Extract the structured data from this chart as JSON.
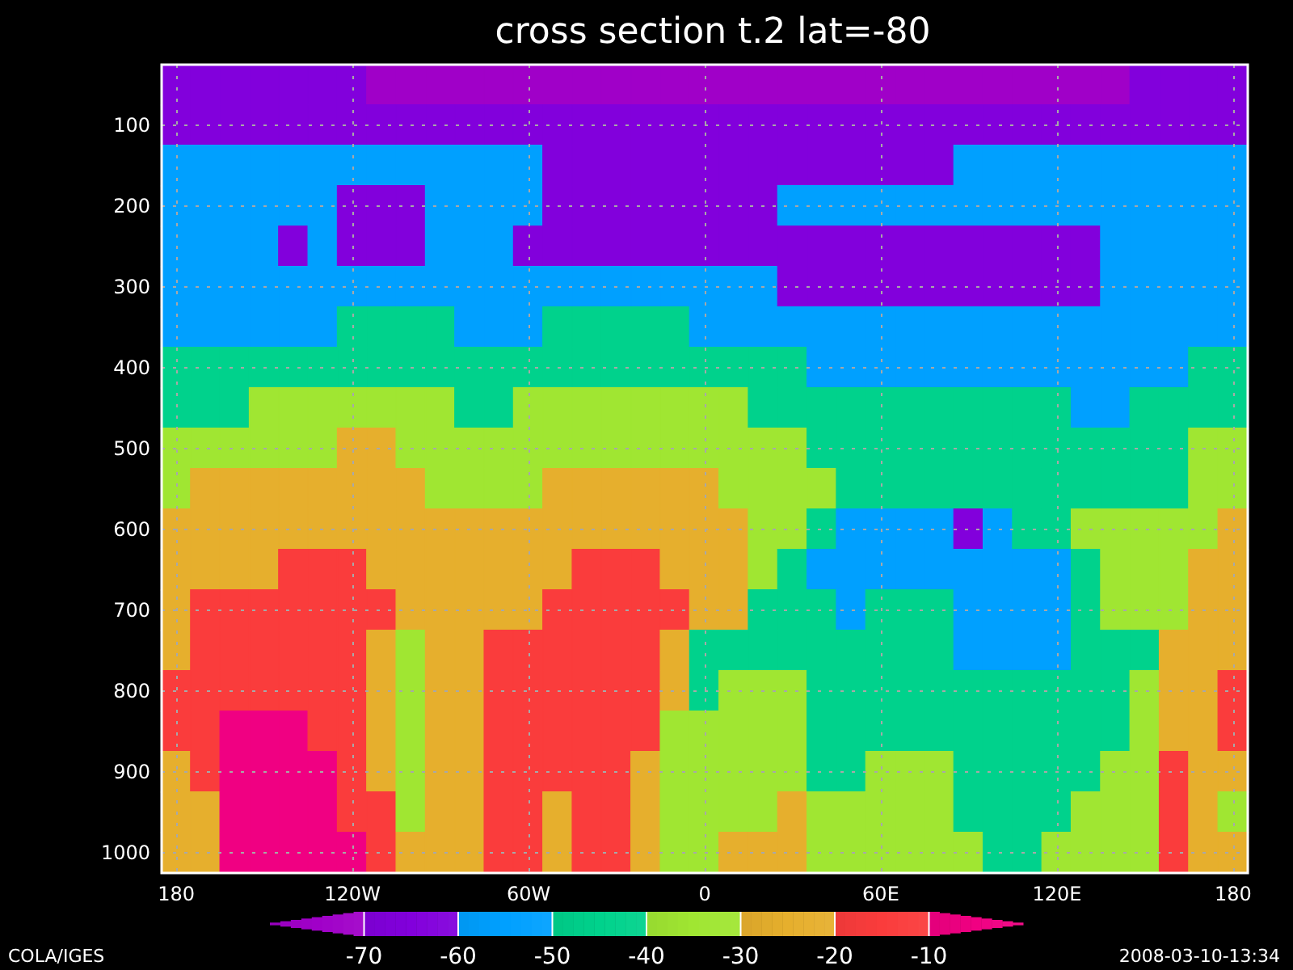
{
  "chart_data": {
    "type": "heatmap",
    "title": "cross section t.2 lat=-80",
    "categories": [
      "180",
      null,
      null,
      null,
      null,
      null,
      "120W",
      null,
      null,
      null,
      null,
      null,
      "60W",
      null,
      null,
      null,
      null,
      null,
      "0",
      null,
      null,
      null,
      null,
      null,
      "60E",
      null,
      null,
      null,
      null,
      null,
      "120E",
      null,
      null,
      null,
      null,
      null,
      "180"
    ],
    "y_categories": [
      null,
      "100",
      null,
      "200",
      null,
      "300",
      null,
      "400",
      null,
      "500",
      null,
      "600",
      null,
      "700",
      null,
      "800",
      null,
      "900",
      null,
      "1000"
    ],
    "cells": [
      [
        -65,
        -65,
        -65,
        -65,
        -65,
        -65,
        -65,
        -75,
        -75,
        -75,
        -75,
        -75,
        -75,
        -75,
        -75,
        -75,
        -75,
        -75,
        -75,
        -75,
        -75,
        -75,
        -75,
        -75,
        -75,
        -75,
        -75,
        -75,
        -75,
        -75,
        -75,
        -75,
        -75,
        -65,
        -65,
        -65,
        -65
      ],
      [
        -65,
        -65,
        -65,
        -65,
        -65,
        -65,
        -65,
        -65,
        -65,
        -65,
        -65,
        -65,
        -65,
        -65,
        -65,
        -65,
        -65,
        -65,
        -65,
        -65,
        -65,
        -65,
        -65,
        -65,
        -65,
        -65,
        -65,
        -65,
        -65,
        -65,
        -65,
        -65,
        -65,
        -65,
        -65,
        -65,
        -65
      ],
      [
        -55,
        -55,
        -55,
        -55,
        -55,
        -55,
        -55,
        -55,
        -55,
        -55,
        -55,
        -55,
        -55,
        -65,
        -65,
        -65,
        -65,
        -65,
        -65,
        -65,
        -65,
        -65,
        -65,
        -65,
        -65,
        -65,
        -65,
        -55,
        -55,
        -55,
        -55,
        -55,
        -55,
        -55,
        -55,
        -55,
        -55
      ],
      [
        -55,
        -55,
        -55,
        -55,
        -55,
        -55,
        -65,
        -65,
        -65,
        -55,
        -55,
        -55,
        -55,
        -65,
        -65,
        -65,
        -65,
        -65,
        -65,
        -65,
        -65,
        -55,
        -55,
        -55,
        -55,
        -55,
        -55,
        -55,
        -55,
        -55,
        -55,
        -55,
        -55,
        -55,
        -55,
        -55,
        -55
      ],
      [
        -55,
        -55,
        -55,
        -55,
        -65,
        -55,
        -65,
        -65,
        -65,
        -55,
        -55,
        -55,
        -65,
        -65,
        -65,
        -65,
        -65,
        -65,
        -65,
        -65,
        -65,
        -65,
        -65,
        -65,
        -65,
        -65,
        -65,
        -65,
        -65,
        -65,
        -65,
        -65,
        -55,
        -55,
        -55,
        -55,
        -55
      ],
      [
        -55,
        -55,
        -55,
        -55,
        -55,
        -55,
        -55,
        -55,
        -55,
        -55,
        -55,
        -55,
        -55,
        -55,
        -55,
        -55,
        -55,
        -55,
        -55,
        -55,
        -55,
        -65,
        -65,
        -65,
        -65,
        -65,
        -65,
        -65,
        -65,
        -65,
        -65,
        -65,
        -55,
        -55,
        -55,
        -55,
        -55
      ],
      [
        -55,
        -55,
        -55,
        -55,
        -55,
        -55,
        -45,
        -45,
        -45,
        -45,
        -55,
        -55,
        -55,
        -45,
        -45,
        -45,
        -45,
        -45,
        -55,
        -55,
        -55,
        -55,
        -55,
        -55,
        -55,
        -55,
        -55,
        -55,
        -55,
        -55,
        -55,
        -55,
        -55,
        -55,
        -55,
        -55,
        -55
      ],
      [
        -45,
        -45,
        -45,
        -45,
        -45,
        -45,
        -45,
        -45,
        -45,
        -45,
        -45,
        -45,
        -45,
        -45,
        -45,
        -45,
        -45,
        -45,
        -45,
        -45,
        -45,
        -45,
        -55,
        -55,
        -55,
        -55,
        -55,
        -55,
        -55,
        -55,
        -55,
        -55,
        -55,
        -55,
        -55,
        -45,
        -45
      ],
      [
        -45,
        -45,
        -45,
        -35,
        -35,
        -35,
        -35,
        -35,
        -35,
        -35,
        -45,
        -45,
        -35,
        -35,
        -35,
        -35,
        -35,
        -35,
        -35,
        -35,
        -45,
        -45,
        -45,
        -45,
        -45,
        -45,
        -45,
        -45,
        -45,
        -45,
        -45,
        -55,
        -55,
        -45,
        -45,
        -45,
        -45
      ],
      [
        -35,
        -35,
        -35,
        -35,
        -35,
        -35,
        -25,
        -25,
        -35,
        -35,
        -35,
        -35,
        -35,
        -35,
        -35,
        -35,
        -35,
        -35,
        -35,
        -35,
        -35,
        -35,
        -45,
        -45,
        -45,
        -45,
        -45,
        -45,
        -45,
        -45,
        -45,
        -45,
        -45,
        -45,
        -45,
        -35,
        -35
      ],
      [
        -35,
        -25,
        -25,
        -25,
        -25,
        -25,
        -25,
        -25,
        -25,
        -35,
        -35,
        -35,
        -35,
        -25,
        -25,
        -25,
        -25,
        -25,
        -25,
        -35,
        -35,
        -35,
        -35,
        -45,
        -45,
        -45,
        -45,
        -45,
        -45,
        -45,
        -45,
        -45,
        -45,
        -45,
        -45,
        -35,
        -35
      ],
      [
        -25,
        -25,
        -25,
        -25,
        -25,
        -25,
        -25,
        -25,
        -25,
        -25,
        -25,
        -25,
        -25,
        -25,
        -25,
        -25,
        -25,
        -25,
        -25,
        -25,
        -35,
        -35,
        -45,
        -55,
        -55,
        -55,
        -55,
        -65,
        -55,
        -45,
        -45,
        -35,
        -35,
        -35,
        -35,
        -35,
        -25
      ],
      [
        -25,
        -25,
        -25,
        -25,
        -15,
        -15,
        -15,
        -25,
        -25,
        -25,
        -25,
        -25,
        -25,
        -25,
        -15,
        -15,
        -15,
        -25,
        -25,
        -25,
        -35,
        -45,
        -55,
        -55,
        -55,
        -55,
        -55,
        -55,
        -55,
        -55,
        -55,
        -45,
        -35,
        -35,
        -35,
        -25,
        -25
      ],
      [
        -25,
        -15,
        -15,
        -15,
        -15,
        -15,
        -15,
        -15,
        -25,
        -25,
        -25,
        -25,
        -25,
        -15,
        -15,
        -15,
        -15,
        -15,
        -25,
        -25,
        -45,
        -45,
        -45,
        -55,
        -45,
        -45,
        -45,
        -55,
        -55,
        -55,
        -55,
        -45,
        -35,
        -35,
        -35,
        -25,
        -25
      ],
      [
        -25,
        -15,
        -15,
        -15,
        -15,
        -15,
        -15,
        -25,
        -35,
        -25,
        -25,
        -15,
        -15,
        -15,
        -15,
        -15,
        -15,
        -25,
        -45,
        -45,
        -45,
        -45,
        -45,
        -45,
        -45,
        -45,
        -45,
        -55,
        -55,
        -55,
        -55,
        -45,
        -45,
        -45,
        -25,
        -25,
        -25
      ],
      [
        -15,
        -15,
        -15,
        -15,
        -15,
        -15,
        -15,
        -25,
        -35,
        -25,
        -25,
        -15,
        -15,
        -15,
        -15,
        -15,
        -15,
        -25,
        -45,
        -35,
        -35,
        -35,
        -45,
        -45,
        -45,
        -45,
        -45,
        -45,
        -45,
        -45,
        -45,
        -45,
        -45,
        -35,
        -25,
        -25,
        -15
      ],
      [
        -15,
        -15,
        -5,
        -5,
        -5,
        -15,
        -15,
        -25,
        -35,
        -25,
        -25,
        -15,
        -15,
        -15,
        -15,
        -15,
        -15,
        -35,
        -35,
        -35,
        -35,
        -35,
        -45,
        -45,
        -45,
        -45,
        -45,
        -45,
        -45,
        -45,
        -45,
        -45,
        -45,
        -35,
        -25,
        -25,
        -15
      ],
      [
        -25,
        -15,
        -5,
        -5,
        -5,
        -5,
        -15,
        -25,
        -35,
        -25,
        -25,
        -15,
        -15,
        -15,
        -15,
        -15,
        -25,
        -35,
        -35,
        -35,
        -35,
        -35,
        -45,
        -45,
        -35,
        -35,
        -35,
        -45,
        -45,
        -45,
        -45,
        -45,
        -35,
        -35,
        -15,
        -25,
        -25
      ],
      [
        -25,
        -25,
        -5,
        -5,
        -5,
        -5,
        -15,
        -15,
        -35,
        -25,
        -25,
        -15,
        -15,
        -25,
        -15,
        -15,
        -25,
        -35,
        -35,
        -35,
        -35,
        -25,
        -35,
        -35,
        -35,
        -35,
        -35,
        -45,
        -45,
        -45,
        -45,
        -35,
        -35,
        -35,
        -15,
        -25,
        -35
      ],
      [
        -25,
        -25,
        -5,
        -5,
        -5,
        -5,
        -5,
        -15,
        -25,
        -25,
        -25,
        -15,
        -15,
        -25,
        -15,
        -15,
        -25,
        -35,
        -35,
        -25,
        -25,
        -25,
        -35,
        -35,
        -35,
        -35,
        -35,
        -35,
        -45,
        -45,
        -35,
        -35,
        -35,
        -35,
        -15,
        -25,
        -25
      ]
    ],
    "clim": [
      -80,
      0
    ],
    "cticks": [
      -70,
      -60,
      -50,
      -40,
      -30,
      -20,
      -10
    ],
    "grid": true,
    "annotations": [
      "COLA/IGES",
      "2008-03-10-13:34"
    ]
  }
}
